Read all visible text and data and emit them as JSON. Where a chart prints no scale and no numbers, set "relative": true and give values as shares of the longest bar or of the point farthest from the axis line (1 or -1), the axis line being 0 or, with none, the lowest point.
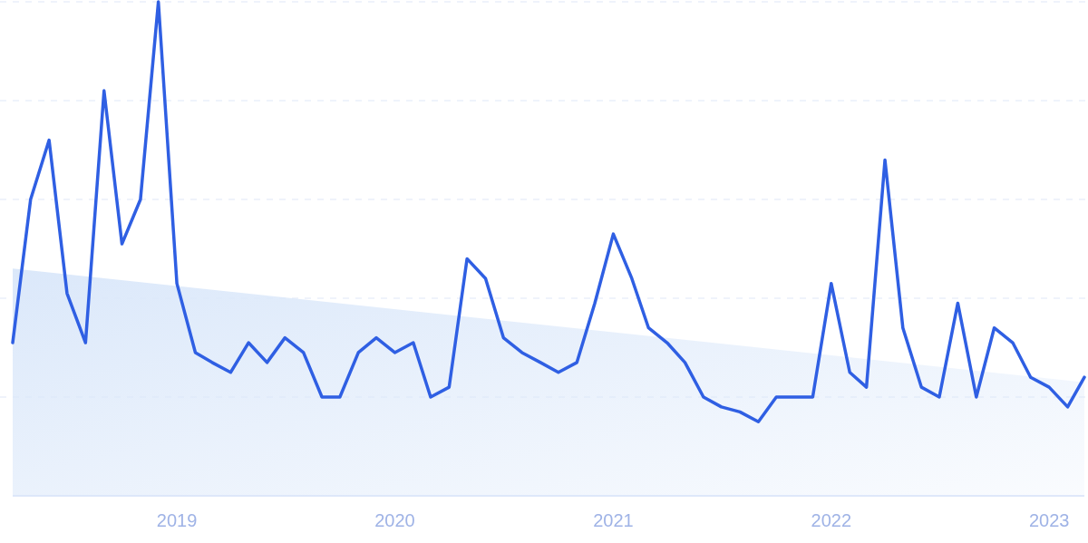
{
  "chart_data": {
    "type": "line",
    "relative": true,
    "grid": "y",
    "x": [
      "2018-04",
      "2018-05",
      "2018-06",
      "2018-07",
      "2018-08",
      "2018-09",
      "2018-10",
      "2018-11",
      "2018-12",
      "2019-01",
      "2019-02",
      "2019-03",
      "2019-04",
      "2019-05",
      "2019-06",
      "2019-07",
      "2019-08",
      "2019-09",
      "2019-10",
      "2019-11",
      "2019-12",
      "2020-01",
      "2020-02",
      "2020-03",
      "2020-04",
      "2020-05",
      "2020-06",
      "2020-07",
      "2020-08",
      "2020-09",
      "2020-10",
      "2020-11",
      "2020-12",
      "2021-01",
      "2021-02",
      "2021-03",
      "2021-04",
      "2021-05",
      "2021-06",
      "2021-07",
      "2021-08",
      "2021-09",
      "2021-10",
      "2021-11",
      "2021-12",
      "2022-01",
      "2022-02",
      "2022-03",
      "2022-04",
      "2022-05",
      "2022-06",
      "2022-07",
      "2022-08",
      "2022-09",
      "2022-10",
      "2022-11",
      "2022-12",
      "2023-01",
      "2023-02",
      "2023-03"
    ],
    "xlim": [
      "2018-04",
      "2023-03"
    ],
    "xticks": [
      "2019",
      "2020",
      "2021",
      "2022",
      "2023"
    ],
    "series": [
      {
        "type": "area",
        "color": "#dbe8fa",
        "x": [
          "2018-04",
          "2023-03"
        ],
        "values": [
          0.46,
          0.23
        ]
      },
      {
        "color": "#2f5fe3",
        "values": [
          0.31,
          0.6,
          0.72,
          0.41,
          0.31,
          0.82,
          0.51,
          0.6,
          1.0,
          0.43,
          0.29,
          0.27,
          0.25,
          0.31,
          0.27,
          0.32,
          0.29,
          0.2,
          0.2,
          0.29,
          0.32,
          0.29,
          0.31,
          0.2,
          0.22,
          0.48,
          0.44,
          0.32,
          0.29,
          0.27,
          0.25,
          0.27,
          0.39,
          0.53,
          0.44,
          0.34,
          0.31,
          0.27,
          0.2,
          0.18,
          0.17,
          0.15,
          0.2,
          0.2,
          0.2,
          0.43,
          0.25,
          0.22,
          0.68,
          0.34,
          0.22,
          0.2,
          0.39,
          0.2,
          0.34,
          0.31,
          0.24,
          0.22,
          0.18,
          0.24
        ]
      }
    ],
    "line_style": "solid",
    "marker": "none"
  }
}
